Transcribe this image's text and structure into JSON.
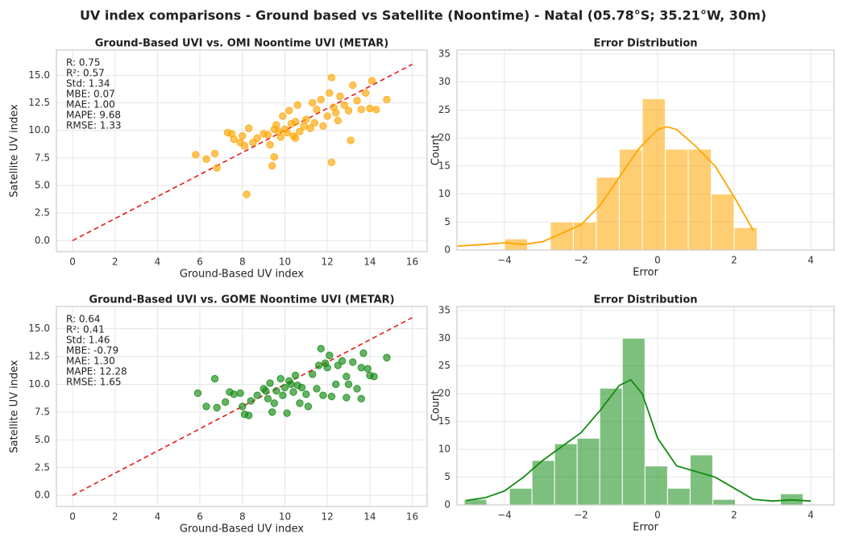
{
  "title": "UV index comparisons - Ground based vs Satellite (Noontime) - Natal (05.78°S; 35.21°W, 30m)",
  "chart_data": [
    {
      "type": "scatter",
      "title": "Ground-Based UVI vs. OMI Noontime UVI (METAR)",
      "x_label": "Ground-Based UV index",
      "y_label": "Satellite UV index",
      "color": "#ffa500",
      "grid": true,
      "x": [
        5.8,
        6.3,
        6.7,
        6.8,
        7.3,
        7.5,
        7.6,
        7.9,
        8.0,
        8.1,
        8.2,
        8.3,
        8.5,
        8.7,
        9.2,
        9.3,
        9.4,
        9.5,
        9.5,
        9.6,
        9.8,
        9.9,
        10.0,
        10.1,
        10.2,
        10.3,
        10.4,
        10.5,
        10.6,
        10.7,
        10.9,
        11.0,
        11.2,
        11.3,
        11.5,
        11.7,
        11.8,
        12.0,
        12.1,
        12.2,
        12.3,
        12.4,
        12.6,
        12.8,
        13.0,
        13.1,
        13.2,
        13.4,
        13.6,
        13.8,
        14.0,
        14.1,
        14.3,
        14.8,
        12.2,
        12.5,
        9.0,
        9.7,
        10.5,
        11.4
      ],
      "values": [
        7.8,
        7.4,
        7.9,
        6.6,
        9.8,
        9.7,
        9.2,
        8.9,
        9.5,
        8.6,
        4.2,
        10.2,
        8.9,
        9.3,
        9.6,
        8.7,
        6.8,
        7.6,
        10.1,
        10.5,
        9.4,
        11.3,
        10.1,
        9.8,
        11.8,
        10.6,
        9.5,
        10.8,
        12.3,
        9.9,
        10.4,
        11.0,
        10.2,
        12.5,
        11.9,
        12.8,
        10.4,
        11.3,
        13.4,
        7.1,
        12.1,
        11.6,
        13.1,
        12.3,
        11.8,
        9.1,
        14.1,
        12.7,
        11.9,
        13.4,
        12.0,
        14.5,
        11.9,
        12.8,
        14.8,
        10.9,
        9.7,
        9.9,
        9.3,
        10.7
      ],
      "reference_line": {
        "x": [
          0,
          16
        ],
        "y": [
          0,
          16
        ],
        "color": "#e41a1c"
      },
      "stats": [
        "R: 0.75",
        "R²: 0.57",
        "Std: 1.34",
        "MBE: 0.07",
        "MAE: 1.00",
        "MAPE: 9.68",
        "RMSE: 1.33"
      ],
      "xlim": [
        -0.76,
        16.7
      ],
      "ylim": [
        -1.0,
        17.3
      ],
      "xticks": [
        0,
        2,
        4,
        6,
        8,
        10,
        12,
        14,
        16
      ],
      "yticks": [
        {
          "value": 0,
          "label": "0.0"
        },
        {
          "value": 2.5,
          "label": "2.5"
        },
        {
          "value": 5,
          "label": "5.0"
        },
        {
          "value": 7.5,
          "label": "7.5"
        },
        {
          "value": 10,
          "label": "10.0"
        },
        {
          "value": 12.5,
          "label": "12.5"
        },
        {
          "value": 15,
          "label": "15.0"
        }
      ]
    },
    {
      "type": "histogram",
      "title": "Error Distribution",
      "x_label": "Error",
      "y_label": "Count",
      "color": "#ffa500",
      "grid": true,
      "bins": [
        -4.0,
        -3.4,
        -2.8,
        -2.2,
        -1.6,
        -1.0,
        -0.4,
        0.2,
        0.8,
        1.4,
        2.0,
        2.6
      ],
      "values": [
        2,
        0,
        5,
        5,
        13,
        18,
        27,
        18,
        18,
        10,
        4
      ],
      "kde": {
        "x": [
          -5.24,
          -4.5,
          -4,
          -3.5,
          -3,
          -2.5,
          -2,
          -1.5,
          -1,
          -0.5,
          0,
          0.25,
          0.5,
          1,
          1.5,
          2,
          2.5
        ],
        "y": [
          0.7,
          1,
          1.3,
          1,
          1.5,
          3,
          4.5,
          8,
          13,
          18,
          21.5,
          22,
          21.5,
          18.5,
          15,
          9.5,
          3.5
        ]
      },
      "xlim": [
        -5.24,
        4.61
      ],
      "ylim": [
        0,
        35.7
      ],
      "xticks": [
        {
          "value": -4,
          "label": "−4"
        },
        {
          "value": -2,
          "label": "−2"
        },
        0,
        2,
        4
      ],
      "yticks": [
        0,
        5,
        10,
        15,
        20,
        25,
        30,
        35
      ]
    },
    {
      "type": "scatter",
      "title": "Ground-Based UVI vs. GOME Noontime UVI (METAR)",
      "x_label": "Ground-Based UV index",
      "y_label": "Satellite UV index",
      "color": "#138a13",
      "grid": true,
      "x": [
        5.9,
        6.3,
        6.7,
        6.8,
        7.2,
        7.4,
        7.6,
        7.9,
        8.0,
        8.1,
        8.3,
        8.4,
        8.7,
        9.1,
        9.2,
        9.3,
        9.4,
        9.5,
        9.6,
        9.8,
        9.9,
        10.0,
        10.1,
        10.3,
        10.4,
        10.5,
        10.7,
        10.8,
        11.0,
        11.1,
        11.3,
        11.5,
        11.6,
        11.7,
        11.8,
        12.0,
        12.1,
        12.2,
        12.4,
        12.5,
        12.7,
        12.9,
        13.0,
        13.2,
        13.4,
        13.6,
        13.7,
        13.9,
        14.0,
        14.2,
        14.8,
        10.2,
        11.9,
        9.0,
        10.6,
        13.6,
        12.9
      ],
      "values": [
        9.2,
        8.0,
        10.5,
        7.9,
        8.4,
        9.3,
        9.1,
        9.2,
        8.0,
        7.3,
        7.2,
        8.5,
        9.0,
        9.4,
        8.7,
        10.1,
        7.5,
        8.3,
        9.4,
        10.5,
        9.0,
        9.7,
        7.4,
        10.0,
        9.3,
        10.8,
        8.3,
        9.7,
        9.1,
        8.0,
        10.9,
        9.6,
        11.7,
        13.2,
        9.0,
        11.5,
        12.6,
        8.9,
        10.0,
        11.7,
        12.1,
        10.7,
        10.0,
        12.0,
        9.6,
        11.5,
        12.8,
        11.4,
        10.8,
        10.7,
        12.4,
        10.3,
        11.9,
        9.6,
        9.9,
        8.7,
        8.8
      ],
      "reference_line": {
        "x": [
          0,
          16
        ],
        "y": [
          0,
          16
        ],
        "color": "#e41a1c"
      },
      "stats": [
        "R: 0.64",
        "R²: 0.41",
        "Std: 1.46",
        "MBE: -0.79",
        "MAE: 1.30",
        "MAPE: 12.28",
        "RMSE: 1.65"
      ],
      "xlim": [
        -0.76,
        16.7
      ],
      "ylim": [
        -1.0,
        17.0
      ],
      "xticks": [
        0,
        2,
        4,
        6,
        8,
        10,
        12,
        14,
        16
      ],
      "yticks": [
        {
          "value": 0,
          "label": "0.0"
        },
        {
          "value": 2.5,
          "label": "2.5"
        },
        {
          "value": 5,
          "label": "5.0"
        },
        {
          "value": 7.5,
          "label": "7.5"
        },
        {
          "value": 10,
          "label": "10.0"
        },
        {
          "value": 12.5,
          "label": "12.5"
        },
        {
          "value": 15,
          "label": "15.0"
        }
      ]
    },
    {
      "type": "histogram",
      "title": "Error Distribution",
      "x_label": "Error",
      "y_label": "Count",
      "color": "#138a13",
      "grid": true,
      "bins": [
        -5.05,
        -4.46,
        -3.87,
        -3.28,
        -2.69,
        -2.1,
        -1.51,
        -0.92,
        -0.33,
        0.26,
        0.85,
        1.44,
        2.03,
        2.62,
        3.21,
        3.8
      ],
      "values": [
        1,
        0,
        3,
        8,
        11,
        12,
        21,
        30,
        7,
        3,
        9,
        1,
        0,
        0,
        2
      ],
      "kde": {
        "x": [
          -5,
          -4.5,
          -4,
          -3.5,
          -3,
          -2.5,
          -2,
          -1.5,
          -1,
          -0.7,
          -0.4,
          0,
          0.5,
          1,
          1.5,
          2,
          2.5,
          3,
          3.5,
          4
        ],
        "y": [
          0.8,
          1.3,
          2.5,
          5,
          8,
          10.5,
          13,
          17,
          21.5,
          22.5,
          20,
          12,
          7,
          6,
          5,
          3,
          1,
          0.7,
          0.9,
          0.7
        ]
      },
      "xlim": [
        -5.24,
        4.61
      ],
      "ylim": [
        0,
        35.7
      ],
      "xticks": [
        {
          "value": -4,
          "label": "−4"
        },
        {
          "value": -2,
          "label": "−2"
        },
        0,
        2,
        4
      ],
      "yticks": [
        0,
        5,
        10,
        15,
        20,
        25,
        30,
        35
      ]
    }
  ]
}
